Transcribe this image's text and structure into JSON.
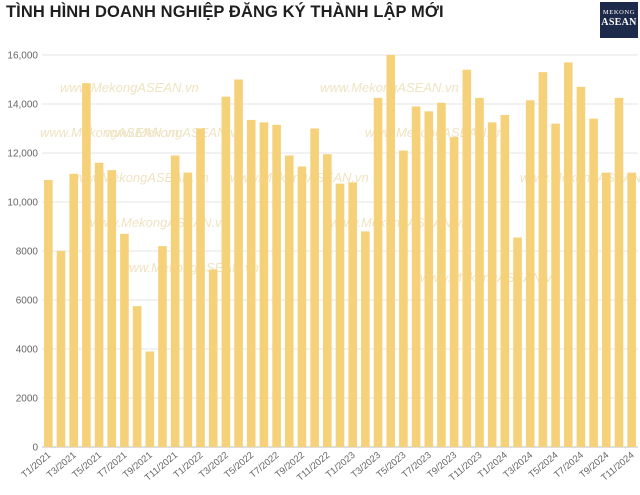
{
  "title": "TÌNH HÌNH DOANH NGHIỆP ĐĂNG KÝ THÀNH LẬP MỚI",
  "logo": {
    "line1": "MEKONG",
    "line2": "ASEAN"
  },
  "watermark": "www.MekongASEAN.vn",
  "colors": {
    "bar": "#f5d27a",
    "grid": "#e6e6e6",
    "axis": "#bfbfbf"
  },
  "chart_data": {
    "type": "bar",
    "title": "TÌNH HÌNH DOANH NGHIỆP ĐĂNG KÝ THÀNH LẬP MỚI",
    "xlabel": "",
    "ylabel": "",
    "ylim": [
      0,
      16000
    ],
    "yticks": [
      0,
      2000,
      4000,
      6000,
      8000,
      10000,
      12000,
      14000,
      16000
    ],
    "ytick_labels": [
      "0",
      "2000",
      "4000",
      "6000",
      "8000",
      "10,000",
      "12,000",
      "14,000",
      "16,000"
    ],
    "grid": true,
    "legend": "none",
    "categories": [
      "T1/2021",
      "T2/2021",
      "T3/2021",
      "T4/2021",
      "T5/2021",
      "T6/2021",
      "T7/2021",
      "T8/2021",
      "T9/2021",
      "T10/2021",
      "T11/2021",
      "T12/2021",
      "T1/2022",
      "T2/2022",
      "T3/2022",
      "T4/2022",
      "T5/2022",
      "T6/2022",
      "T7/2022",
      "T8/2022",
      "T9/2022",
      "T10/2022",
      "T11/2022",
      "T12/2022",
      "T1/2023",
      "T2/2023",
      "T3/2023",
      "T4/2023",
      "T5/2023",
      "T6/2023",
      "T7/2023",
      "T8/2023",
      "T9/2023",
      "T10/2023",
      "T11/2023",
      "T12/2023",
      "T1/2024",
      "T2/2024",
      "T3/2024",
      "T4/2024",
      "T5/2024",
      "T6/2024",
      "T7/2024",
      "T8/2024",
      "T9/2024",
      "T10/2024",
      "T11/2024"
    ],
    "xtick_labels": [
      "T1/2021",
      "",
      "T3/2021",
      "",
      "T5/2021",
      "",
      "T7/2021",
      "",
      "T9/2021",
      "",
      "T11/2021",
      "",
      "T1/2022",
      "",
      "T3/2022",
      "",
      "T5/2022",
      "",
      "T7/2022",
      "",
      "T9/2022",
      "",
      "T11/2022",
      "",
      "T1/2023",
      "",
      "T3/2023",
      "",
      "T5/2023",
      "",
      "T7/2023",
      "",
      "T9/2023",
      "",
      "T11/2023",
      "",
      "T1/2024",
      "",
      "T3/2024",
      "",
      "T5/2024",
      "",
      "T7/2024",
      "",
      "T9/2024",
      "",
      "T11/2024"
    ],
    "values": [
      10900,
      8000,
      11150,
      14850,
      11600,
      11300,
      8700,
      5750,
      3900,
      8200,
      11900,
      11200,
      13000,
      7250,
      14300,
      15000,
      13350,
      13250,
      13150,
      11900,
      11450,
      13000,
      11950,
      10750,
      10800,
      8800,
      14250,
      16000,
      12100,
      13900,
      13700,
      14050,
      12650,
      15400,
      14250,
      13250,
      13550,
      8550,
      14150,
      15300,
      13200,
      15700,
      14700,
      13400,
      11200,
      14250,
      11200
    ]
  }
}
